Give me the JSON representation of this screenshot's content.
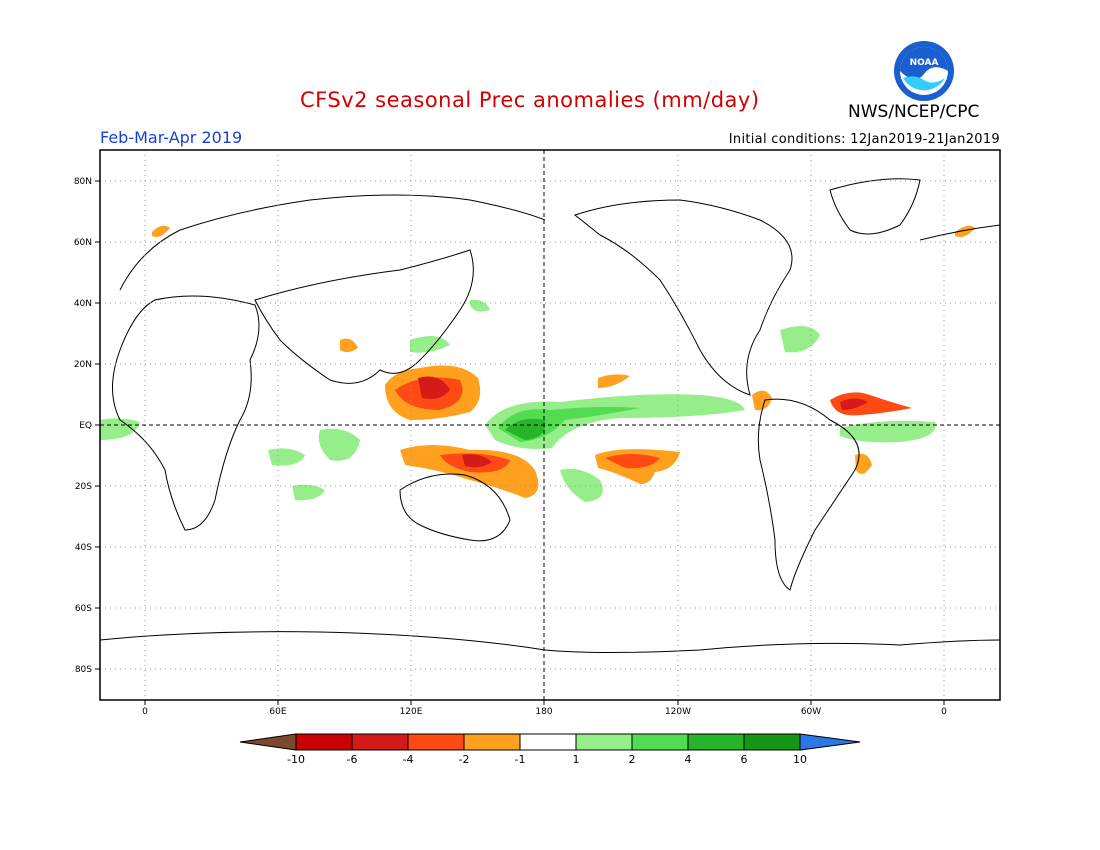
{
  "header": {
    "title": "CFSv2 seasonal Prec anomalies (mm/day)",
    "agency": "NWS/NCEP/CPC",
    "logo_text": "NOAA",
    "period": "Feb-Mar-Apr 2019",
    "initial_conditions": "Initial conditions: 12Jan2019-21Jan2019"
  },
  "colors": {
    "title": "#d40000",
    "period": "#1a3fd6",
    "logo_blue": "#1a5fd0",
    "logo_cyan": "#33ccff"
  },
  "map": {
    "lat_labels": [
      "80N",
      "60N",
      "40N",
      "20N",
      "EQ",
      "20S",
      "40S",
      "60S",
      "80S"
    ],
    "lon_labels": [
      "0",
      "60E",
      "120E",
      "180",
      "120W",
      "60W",
      "0"
    ]
  },
  "colorbar": {
    "ticks": [
      "-10",
      "-6",
      "-4",
      "-2",
      "-1",
      "1",
      "2",
      "4",
      "6",
      "10"
    ],
    "colors": [
      "#7a4a2a",
      "#c80000",
      "#d51a1a",
      "#ff4a14",
      "#ffa01e",
      "#ffffff",
      "#96ee8a",
      "#52dc52",
      "#28b428",
      "#159615",
      "#2a78e8"
    ]
  },
  "anomalies": [
    {
      "name": "wet-equatorial-central-pacific",
      "color": "#52dc52"
    },
    {
      "name": "dry-philippines-warm-pool",
      "color": "#ff4a14"
    },
    {
      "name": "dry-south-pacific",
      "color": "#ff4a14"
    },
    {
      "name": "dry-tropical-atlantic",
      "color": "#ff4a14"
    }
  ]
}
